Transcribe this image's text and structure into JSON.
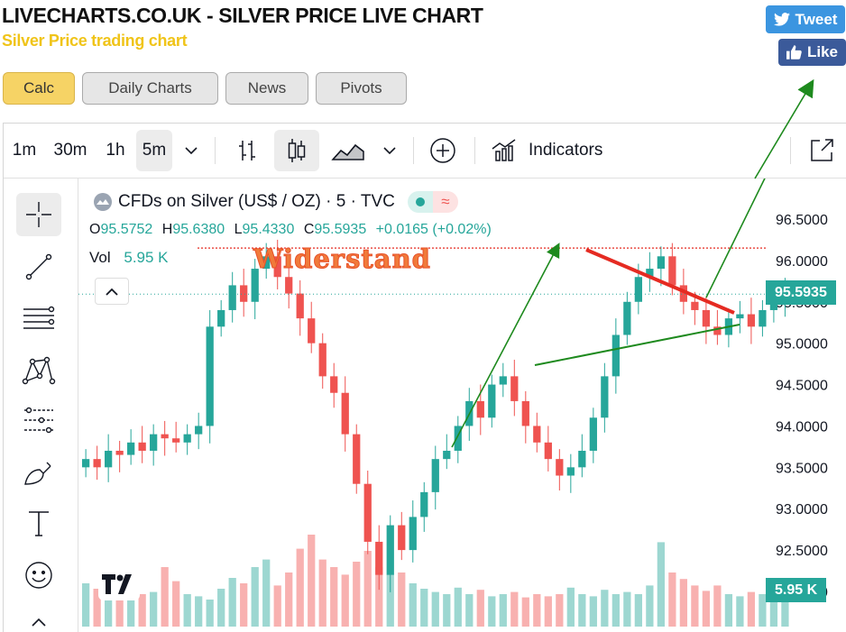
{
  "header": {
    "title": "LIVECHARTS.CO.UK - SILVER PRICE LIVE CHART",
    "subtitle": "Silver Price trading chart"
  },
  "social": {
    "tweet": "Tweet",
    "like": "Like"
  },
  "nav": [
    {
      "label": "Calc",
      "active": true
    },
    {
      "label": "Daily Charts"
    },
    {
      "label": "News"
    },
    {
      "label": "Pivots"
    }
  ],
  "toolbar": {
    "intervals": [
      "1m",
      "30m",
      "1h",
      "5m"
    ],
    "selected_interval": "5m",
    "indicators_label": "Indicators"
  },
  "left_tools": [
    "crosshair-icon",
    "trend-line-icon",
    "fib-lines-icon",
    "pattern-icon",
    "projection-icon",
    "brush-icon",
    "text-icon",
    "emoji-icon"
  ],
  "legend": {
    "symbol": "CFDs on Silver (US$ / OZ) · 5 · TVC",
    "o_label": "O",
    "o_value": "95.5752",
    "h_label": "H",
    "h_value": "95.6380",
    "l_label": "L",
    "l_value": "95.4330",
    "c_label": "C",
    "c_value": "95.5935",
    "change": "+0.0165 (+0.02%)",
    "vol_label": "Vol",
    "vol_value": "5.95 K"
  },
  "annotation": "Widerstand",
  "price_scale": [
    "96.5000",
    "96.0000",
    "95.5000",
    "95.0000",
    "94.5000",
    "94.0000",
    "93.5000",
    "93.0000",
    "92.5000",
    "92.0000"
  ],
  "last_price": "95.5935",
  "last_volume": "5.95 K",
  "colors": {
    "up": "#26a69a",
    "down": "#ef5350",
    "accent": "#f6d365",
    "resistance": "#e52b22",
    "trend": "#1e8a1e"
  },
  "chart_data": {
    "type": "candlestick",
    "title": "CFDs on Silver (US$ / OZ) · 5 · TVC",
    "ylim": [
      91.6,
      96.9
    ],
    "close_series": [
      93.6,
      93.5,
      93.7,
      93.65,
      93.8,
      93.7,
      93.9,
      93.85,
      93.8,
      93.9,
      94.0,
      95.2,
      95.4,
      95.7,
      95.5,
      95.9,
      96.05,
      95.8,
      95.6,
      95.3,
      95.0,
      94.6,
      94.4,
      93.9,
      93.3,
      92.6,
      92.2,
      92.8,
      92.5,
      92.9,
      93.2,
      93.6,
      93.7,
      94.0,
      94.3,
      94.1,
      94.5,
      94.6,
      94.3,
      94.0,
      93.8,
      93.6,
      93.4,
      93.5,
      93.7,
      94.1,
      94.6,
      95.1,
      95.5,
      95.8,
      95.9,
      96.05,
      95.7,
      95.5,
      95.4,
      95.2,
      95.1,
      95.3,
      95.35,
      95.2,
      95.4,
      95.5,
      95.59
    ],
    "volume_rel": [
      0.4,
      0.35,
      0.3,
      0.45,
      0.38,
      0.3,
      0.32,
      0.55,
      0.42,
      0.3,
      0.28,
      0.25,
      0.35,
      0.45,
      0.4,
      0.55,
      0.62,
      0.38,
      0.5,
      0.72,
      0.85,
      0.62,
      0.55,
      0.48,
      0.6,
      0.7,
      0.55,
      0.48,
      0.5,
      0.4,
      0.35,
      0.32,
      0.3,
      0.36,
      0.3,
      0.34,
      0.28,
      0.3,
      0.32,
      0.27,
      0.3,
      0.28,
      0.3,
      0.36,
      0.3,
      0.28,
      0.34,
      0.3,
      0.32,
      0.3,
      0.38,
      0.78,
      0.5,
      0.44,
      0.38,
      0.33,
      0.38,
      0.3,
      0.28,
      0.32,
      0.3,
      0.28,
      0.26
    ],
    "resistance_level": 96.15
  }
}
